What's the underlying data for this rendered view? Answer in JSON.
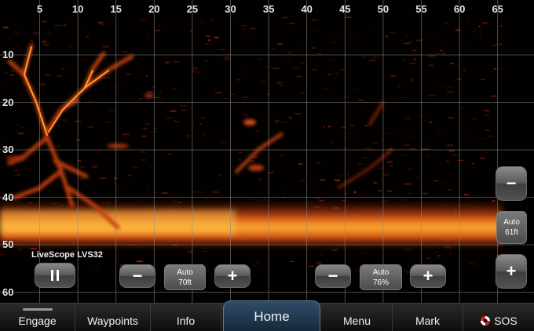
{
  "sonar": {
    "x_axis_ticks": [
      "5",
      "10",
      "15",
      "20",
      "25",
      "30",
      "35",
      "40",
      "45",
      "50",
      "55",
      "60",
      "65"
    ],
    "y_axis_ticks": [
      "10",
      "20",
      "30",
      "40",
      "50",
      "60"
    ],
    "source_label": "LiveScope LVS32",
    "colors": {
      "background": "#020100",
      "echo_bright": "#ffb030",
      "echo_mid": "#d84a12",
      "echo_dark": "#6b1606",
      "grid": "#8a8a8a"
    }
  },
  "controls": {
    "range": {
      "readout_line1": "Auto",
      "readout_line2": "70ft"
    },
    "gain": {
      "readout_line1": "Auto",
      "readout_line2": "76%"
    },
    "depth": {
      "readout_line1": "Auto",
      "readout_line2": "61ft"
    },
    "minus_glyph": "−",
    "plus_glyph": "+",
    "pause_icon": "pause-icon"
  },
  "navbar": {
    "tabs": [
      {
        "label": "Engage"
      },
      {
        "label": "Waypoints"
      },
      {
        "label": "Info"
      },
      {
        "label": "Home"
      },
      {
        "label": "Menu"
      },
      {
        "label": "Mark"
      },
      {
        "label": "SOS"
      }
    ],
    "active_tab": "Home",
    "sos_icon": "lifebuoy-icon",
    "accent": "#2f4f68"
  }
}
